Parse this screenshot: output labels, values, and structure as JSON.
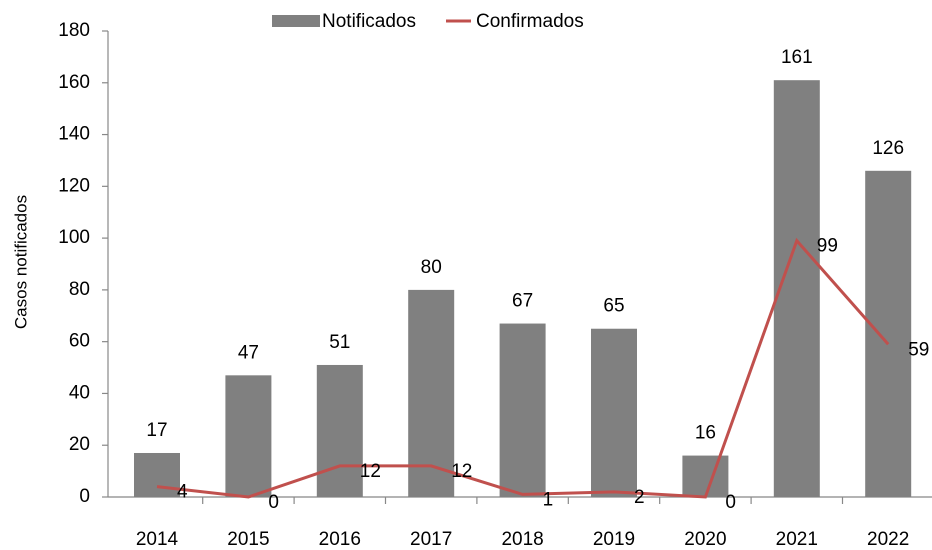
{
  "chart_data": {
    "type": "bar",
    "y_label": "Casos notificados",
    "categories": [
      "2014",
      "2015",
      "2016",
      "2017",
      "2018",
      "2019",
      "2020",
      "2021",
      "2022"
    ],
    "series": [
      {
        "name": "Notificados",
        "type": "bar",
        "color": "#808080",
        "values": [
          17,
          47,
          51,
          80,
          67,
          65,
          16,
          161,
          126
        ]
      },
      {
        "name": "Confirmados",
        "type": "line",
        "color": "#c0504d",
        "values": [
          4,
          0,
          12,
          12,
          1,
          2,
          0,
          99,
          59
        ]
      }
    ],
    "ylim": [
      0,
      180
    ],
    "yticks": [
      0,
      20,
      40,
      60,
      80,
      100,
      120,
      140,
      160,
      180
    ],
    "legend": "top",
    "grid": false
  }
}
